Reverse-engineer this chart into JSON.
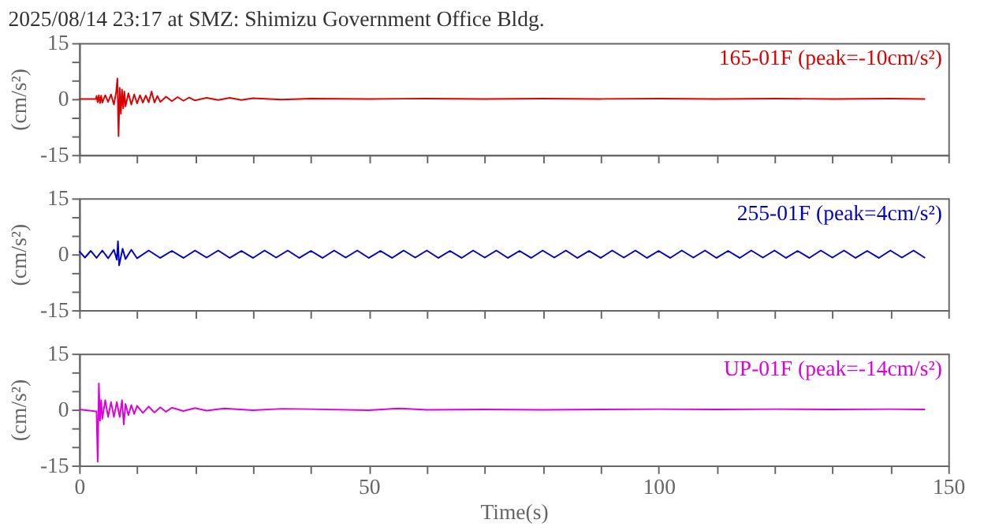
{
  "chart_data": [
    {
      "type": "line",
      "title": "2025/08/14 23:17 at SMZ: Shimizu Government Office Bldg.",
      "ylabel": "(cm/s²)",
      "tick_labels": "y",
      "grid": false,
      "legend": false,
      "line_style": "solid",
      "xlim": [
        0,
        150
      ],
      "xticks": [
        {
          "value": 0,
          "label": null
        },
        {
          "value": 10,
          "label": null
        },
        {
          "value": 20,
          "label": null
        },
        {
          "value": 30,
          "label": null
        },
        {
          "value": 40,
          "label": null
        },
        {
          "value": 50,
          "label": null
        },
        {
          "value": 60,
          "label": null
        },
        {
          "value": 70,
          "label": null
        },
        {
          "value": 80,
          "label": null
        },
        {
          "value": 90,
          "label": null
        },
        {
          "value": 100,
          "label": null
        },
        {
          "value": 110,
          "label": null
        },
        {
          "value": 120,
          "label": null
        },
        {
          "value": 130,
          "label": null
        },
        {
          "value": 140,
          "label": null
        },
        {
          "value": 150,
          "label": null
        }
      ],
      "ylim": [
        -15,
        15
      ],
      "yticks": [
        -15,
        {
          "value": -10,
          "label": null
        },
        {
          "value": -5,
          "label": null
        },
        0,
        {
          "value": 5,
          "label": null
        },
        {
          "value": 10,
          "label": null
        },
        15
      ],
      "x": [
        0,
        2.9,
        3.0,
        3.2,
        3.4,
        3.6,
        3.8,
        4.0,
        4.5,
        5,
        5.5,
        6,
        6.4,
        6.6,
        6.8,
        7.0,
        7.2,
        7.4,
        7.6,
        7.8,
        8,
        8.5,
        9,
        9.5,
        10,
        10.5,
        11,
        11.5,
        12,
        12.5,
        13,
        13.5,
        14,
        15,
        16,
        17,
        18,
        19,
        20,
        22,
        24,
        26,
        28,
        30,
        35,
        40,
        50,
        60,
        70,
        80,
        90,
        100,
        110,
        120,
        130,
        140,
        146
      ],
      "series": [
        {
          "name": "165-01F (peak=-10cm/s²)",
          "color": "#dd0000",
          "values": [
            0,
            0,
            0.8,
            -0.9,
            1.0,
            -1.1,
            0.9,
            -1.0,
            1.0,
            -0.8,
            1.2,
            -1.5,
            2,
            5.5,
            -10,
            3,
            -4,
            2.5,
            -2.5,
            2,
            -2,
            1.5,
            -1.5,
            1.2,
            -1.2,
            1,
            -1,
            0.9,
            -0.9,
            2,
            -1,
            0.8,
            -0.8,
            0.6,
            -0.6,
            0.5,
            -0.5,
            0.4,
            -0.4,
            0.3,
            -0.3,
            0.3,
            -0.3,
            0.2,
            -0.2,
            0.1,
            0,
            0.1,
            0,
            0.1,
            0,
            0.1,
            0,
            0.1,
            0,
            0.1,
            0
          ]
        }
      ]
    },
    {
      "type": "line",
      "ylabel": "(cm/s²)",
      "tick_labels": "y",
      "grid": false,
      "legend": false,
      "line_style": "solid",
      "xlim": [
        0,
        150
      ],
      "xticks": [
        {
          "value": 0,
          "label": null
        },
        {
          "value": 10,
          "label": null
        },
        {
          "value": 20,
          "label": null
        },
        {
          "value": 30,
          "label": null
        },
        {
          "value": 40,
          "label": null
        },
        {
          "value": 50,
          "label": null
        },
        {
          "value": 60,
          "label": null
        },
        {
          "value": 70,
          "label": null
        },
        {
          "value": 80,
          "label": null
        },
        {
          "value": 90,
          "label": null
        },
        {
          "value": 100,
          "label": null
        },
        {
          "value": 110,
          "label": null
        },
        {
          "value": 120,
          "label": null
        },
        {
          "value": 130,
          "label": null
        },
        {
          "value": 140,
          "label": null
        },
        {
          "value": 150,
          "label": null
        }
      ],
      "ylim": [
        -15,
        15
      ],
      "yticks": [
        -15,
        {
          "value": -10,
          "label": null
        },
        {
          "value": -5,
          "label": null
        },
        0,
        {
          "value": 5,
          "label": null
        },
        {
          "value": 10,
          "label": null
        },
        15
      ],
      "x": [
        0,
        1,
        2,
        3,
        4,
        5,
        6,
        6.5,
        6.7,
        6.9,
        7.5,
        8,
        9,
        10,
        12,
        14,
        16,
        18,
        20,
        22,
        24,
        26,
        28,
        30,
        32,
        34,
        36,
        38,
        40,
        42,
        44,
        46,
        48,
        50,
        52,
        54,
        56,
        58,
        60,
        62,
        64,
        66,
        68,
        70,
        72,
        74,
        76,
        78,
        80,
        82,
        84,
        86,
        88,
        90,
        92,
        94,
        96,
        98,
        100,
        102,
        104,
        106,
        108,
        110,
        112,
        114,
        116,
        118,
        120,
        122,
        124,
        126,
        128,
        130,
        132,
        134,
        136,
        138,
        140,
        142,
        144,
        146
      ],
      "series": [
        {
          "name": "255-01F (peak=4cm/s²)",
          "color": "#0000cc",
          "values": [
            0.8,
            -0.9,
            0.9,
            -1,
            1,
            -1.1,
            1.2,
            -1.5,
            3.5,
            -3,
            1.5,
            -1.3,
            1.2,
            -1.1,
            1,
            -1,
            0.9,
            -1,
            1,
            -0.9,
            1,
            -1,
            0.9,
            -1,
            1,
            -0.9,
            1,
            -1,
            0.9,
            -1,
            1,
            -0.9,
            1,
            -1,
            0.9,
            -1,
            1,
            -0.9,
            1,
            -1,
            0.9,
            -1,
            1,
            -0.9,
            1,
            -1,
            0.9,
            -1,
            1,
            -0.9,
            1,
            -1,
            0.9,
            -1,
            1,
            -0.9,
            1,
            -1,
            0.9,
            -1,
            1,
            -0.9,
            1,
            -1,
            0.9,
            -1,
            1,
            -0.9,
            1,
            -1,
            0.9,
            -1,
            1,
            -0.9,
            1,
            -1,
            0.9,
            -1,
            1,
            -0.9,
            1,
            -1
          ]
        }
      ]
    },
    {
      "type": "line",
      "xlabel": "Time(s)",
      "ylabel": "(cm/s²)",
      "grid": false,
      "legend": false,
      "line_style": "solid",
      "xlim": [
        0,
        150
      ],
      "xticks": [
        0,
        {
          "value": 10,
          "label": null
        },
        {
          "value": 20,
          "label": null
        },
        {
          "value": 30,
          "label": null
        },
        {
          "value": 40,
          "label": null
        },
        50,
        {
          "value": 60,
          "label": null
        },
        {
          "value": 70,
          "label": null
        },
        {
          "value": 80,
          "label": null
        },
        {
          "value": 90,
          "label": null
        },
        100,
        {
          "value": 110,
          "label": null
        },
        {
          "value": 120,
          "label": null
        },
        {
          "value": 130,
          "label": null
        },
        {
          "value": 140,
          "label": null
        },
        150
      ],
      "ylim": [
        -15,
        15
      ],
      "yticks": [
        -15,
        {
          "value": -10,
          "label": null
        },
        {
          "value": -5,
          "label": null
        },
        0,
        {
          "value": 5,
          "label": null
        },
        {
          "value": 10,
          "label": null
        },
        15
      ],
      "x": [
        0,
        3.0,
        3.2,
        3.4,
        3.6,
        3.8,
        4,
        4.5,
        5,
        5.5,
        6,
        6.5,
        7,
        7.4,
        7.7,
        8,
        8.5,
        9,
        9.5,
        10,
        11,
        12,
        13,
        14,
        15,
        16,
        18,
        20,
        22,
        25,
        30,
        35,
        40,
        50,
        55,
        60,
        70,
        80,
        90,
        100,
        110,
        120,
        130,
        140,
        146
      ],
      "series": [
        {
          "name": "UP-01F (peak=-14cm/s²)",
          "color": "#dd00dd",
          "values": [
            0,
            -0.5,
            -14,
            7,
            -3,
            2.5,
            -2.5,
            2.5,
            -2,
            2,
            -2,
            2,
            -2,
            2.5,
            -4,
            1.5,
            -1.5,
            1.2,
            -1.2,
            1,
            -0.9,
            0.8,
            -0.8,
            0.6,
            -0.6,
            0.5,
            -0.4,
            0.4,
            -0.3,
            0.3,
            -0.2,
            0.2,
            0.1,
            -0.2,
            0.3,
            -0.1,
            0,
            -0.1,
            0,
            0.1,
            0,
            0.1,
            0,
            0.1,
            0
          ]
        }
      ]
    }
  ]
}
